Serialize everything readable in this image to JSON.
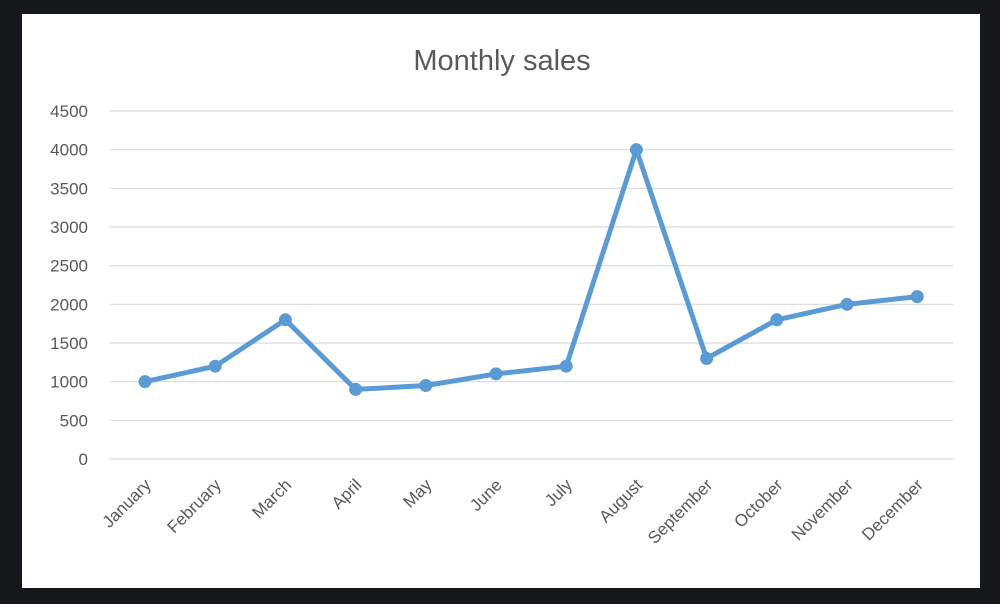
{
  "chart_data": {
    "type": "line",
    "title": "Monthly sales",
    "xlabel": "",
    "ylabel": "",
    "categories": [
      "January",
      "February",
      "March",
      "April",
      "May",
      "June",
      "July",
      "August",
      "September",
      "October",
      "November",
      "December"
    ],
    "series": [
      {
        "values": [
          1000,
          1200,
          1800,
          900,
          950,
          1100,
          1200,
          4000,
          1300,
          1800,
          2000,
          2100
        ],
        "color": "#5b9bd5"
      }
    ],
    "ylim": [
      0,
      4500
    ],
    "yticks": [
      "0",
      "500",
      "1000",
      "1500",
      "2000",
      "2500",
      "3000",
      "3500",
      "4000",
      "4500"
    ],
    "grid": "horizontal",
    "legend": "none",
    "colors": {
      "background": "#ffffff",
      "outer": "#16171b",
      "grid": "#d9d9d9",
      "text": "#595959"
    }
  }
}
